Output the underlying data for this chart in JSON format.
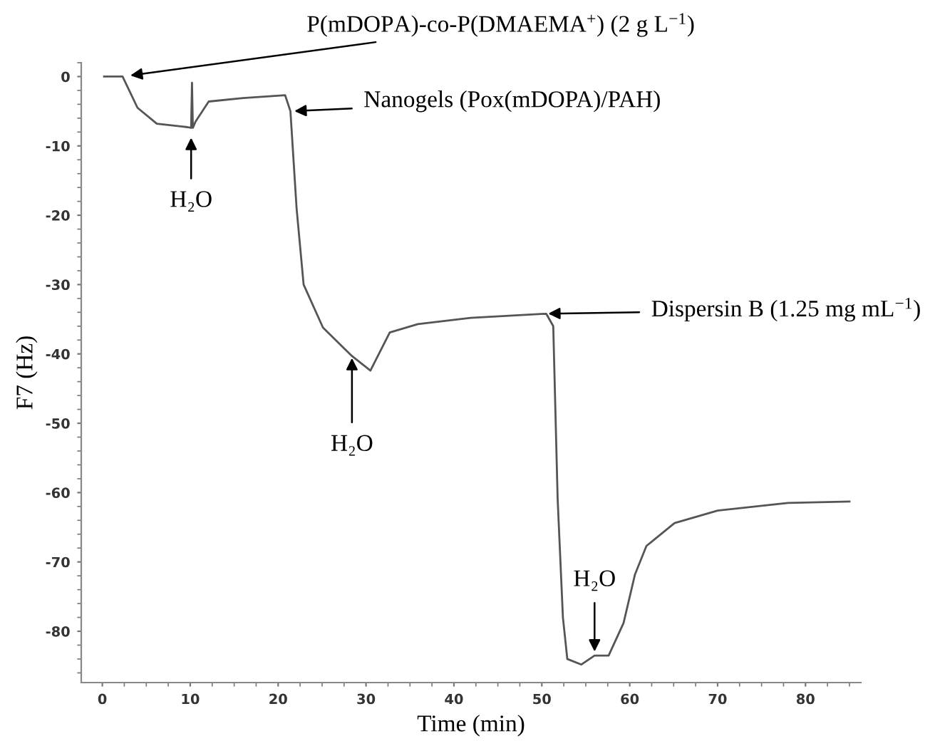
{
  "chart_data": {
    "type": "line",
    "xlabel": "Time (min)",
    "ylabel": "F7 (Hz)",
    "x": [
      0.2,
      2.3,
      4.0,
      6.2,
      9.7,
      10.1,
      10.2,
      10.3,
      10.6,
      12.1,
      16.0,
      20.8,
      21.4,
      22.1,
      22.9,
      25.1,
      28.4,
      30.5,
      32.7,
      35.9,
      41.9,
      50.5,
      51.3,
      51.8,
      52.4,
      52.9,
      54.5,
      56.0,
      57.6,
      59.3,
      60.6,
      61.9,
      65.1,
      70.0,
      78.0,
      85.0
    ],
    "series": [
      {
        "color": "#555555",
        "values": [
          0,
          0,
          -4.5,
          -6.8,
          -7.3,
          -7.4,
          -0.9,
          -7.4,
          -6.5,
          -3.6,
          -3.1,
          -2.7,
          -5,
          -19,
          -30,
          -36.2,
          -40.3,
          -42.4,
          -36.9,
          -35.7,
          -34.8,
          -34.2,
          -36,
          -60.9,
          -78,
          -84,
          -84.8,
          -83.5,
          -83.5,
          -78.8,
          -71.8,
          -67.7,
          -64.4,
          -62.6,
          -61.5,
          -61.3
        ]
      }
    ],
    "xlim": [
      -2.4,
      86.3
    ],
    "ylim": [
      -87.4,
      2
    ],
    "xticks": [
      0,
      10,
      20,
      30,
      40,
      50,
      60,
      70,
      80
    ],
    "yticks": [
      0,
      -10,
      -20,
      -30,
      -40,
      -50,
      -60,
      -70,
      -80
    ],
    "grid": false,
    "legend": false,
    "marker": "none",
    "line_style": "solid",
    "annotations": [
      {
        "text": "P(mDOPA)-co-P(DMAEMA$^{+}$) (2 g L$^{−1}$)",
        "x": 2.3,
        "y": 0
      },
      {
        "text": "H₂O",
        "x": 10.1,
        "y": -7.4
      },
      {
        "text": "Nanogels (Pox(mDOPA)/PAH)",
        "x": 21.4,
        "y": -5
      },
      {
        "text": "H₂O",
        "x": 28.4,
        "y": -40.3
      },
      {
        "text": "Dispersin B (1.25 mg mL$^{−1}$)",
        "x": 50.5,
        "y": -34.2
      },
      {
        "text": "H₂O",
        "x": 56.0,
        "y": -83.5
      }
    ]
  }
}
